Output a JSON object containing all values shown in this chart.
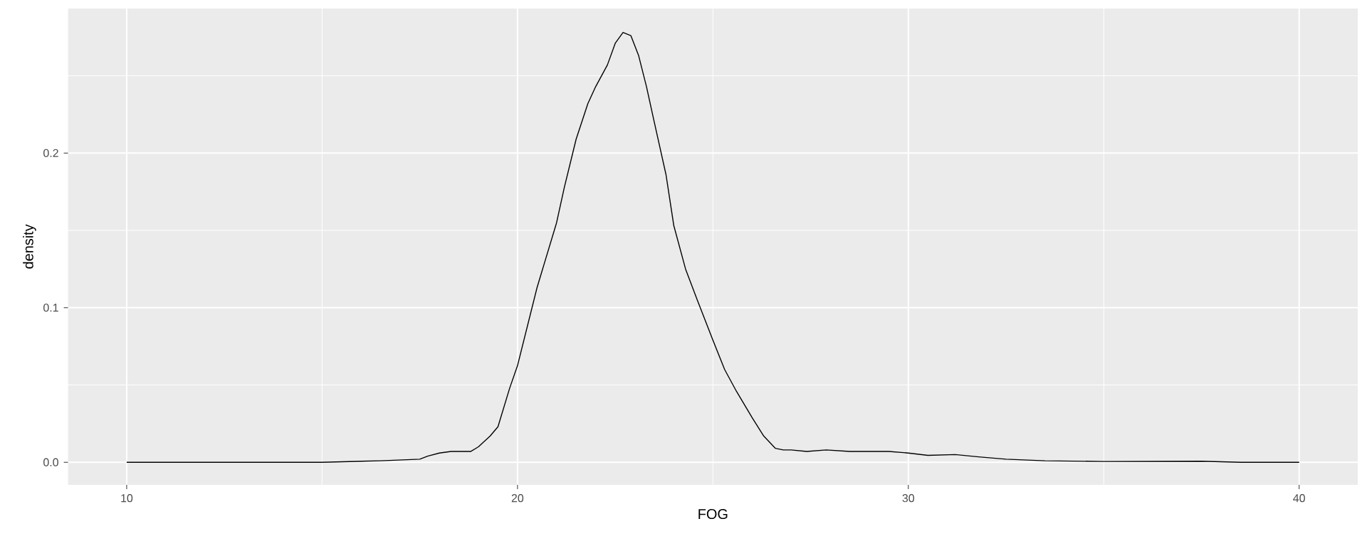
{
  "chart_data": {
    "type": "line",
    "xlabel": "FOG",
    "ylabel": "density",
    "color": "#000000",
    "line_style": "solid",
    "grid": true,
    "x": [
      10,
      15,
      16.5,
      17.5,
      17.7,
      18.0,
      18.3,
      18.8,
      19.0,
      19.3,
      19.5,
      19.8,
      20.0,
      20.5,
      21.0,
      21.2,
      21.5,
      21.8,
      22.0,
      22.3,
      22.5,
      22.7,
      22.9,
      23.1,
      23.3,
      23.5,
      23.8,
      24.0,
      24.3,
      24.6,
      25.0,
      25.3,
      25.6,
      26.0,
      26.3,
      26.6,
      26.8,
      27.0,
      27.4,
      27.9,
      28.5,
      29.0,
      29.5,
      30.0,
      30.5,
      31.2,
      31.8,
      32.5,
      33.5,
      35,
      37.5,
      38.5,
      40
    ],
    "values": [
      0,
      0,
      0.001,
      0.002,
      0.004,
      0.006,
      0.007,
      0.007,
      0.01,
      0.017,
      0.023,
      0.048,
      0.0625,
      0.113,
      0.155,
      0.178,
      0.209,
      0.232,
      0.243,
      0.257,
      0.271,
      0.278,
      0.276,
      0.263,
      0.243,
      0.22,
      0.186,
      0.153,
      0.125,
      0.105,
      0.079,
      0.06,
      0.046,
      0.029,
      0.017,
      0.009,
      0.008,
      0.008,
      0.007,
      0.008,
      0.007,
      0.007,
      0.007,
      0.006,
      0.0045,
      0.005,
      0.0035,
      0.002,
      0.001,
      0.0005,
      0.0007,
      0,
      0
    ],
    "xlim": [
      8.5,
      41.5
    ],
    "ylim": [
      -0.0146,
      0.2935
    ],
    "xticks": [
      10,
      {
        "value": 15,
        "label": null
      },
      20,
      {
        "value": 25,
        "label": null
      },
      30,
      {
        "value": 35,
        "label": null
      },
      40
    ],
    "yticks": [
      {
        "value": 0,
        "label": "0.0"
      },
      {
        "value": 0.05,
        "label": null
      },
      {
        "value": 0.1,
        "label": "0.1"
      },
      {
        "value": 0.15,
        "label": null
      },
      {
        "value": 0.2,
        "label": "0.2"
      },
      {
        "value": 0.25,
        "label": null
      }
    ]
  }
}
